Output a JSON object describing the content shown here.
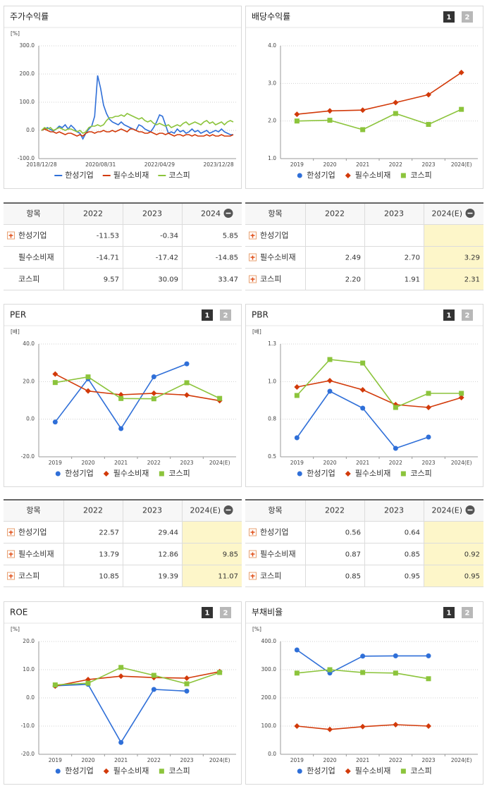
{
  "chart_data": [
    {
      "type": "line",
      "title": "주가수익률",
      "unit": "[%]",
      "categories": [
        "2018/12/28",
        null,
        null,
        null,
        null,
        null,
        null,
        null,
        null,
        null,
        null,
        null,
        null,
        null,
        null,
        null,
        null,
        null,
        null,
        null,
        "2020/08/31",
        null,
        null,
        null,
        null,
        null,
        null,
        null,
        null,
        null,
        null,
        null,
        null,
        null,
        null,
        null,
        null,
        null,
        null,
        null,
        "2022/04/29",
        null,
        null,
        null,
        null,
        null,
        null,
        null,
        null,
        null,
        null,
        null,
        null,
        null,
        null,
        null,
        null,
        null,
        null,
        null,
        "2023/12/28",
        null,
        null,
        null,
        null,
        null
      ],
      "ylim": [
        -100,
        300
      ],
      "yticks": [
        {
          "value": -100,
          "label": "-100.0"
        },
        {
          "value": 0,
          "label": "0.0"
        },
        {
          "value": 100,
          "label": "100.0"
        },
        {
          "value": 200,
          "label": "200.0"
        },
        {
          "value": 300,
          "label": "300.0"
        }
      ],
      "grid": true,
      "series": [
        {
          "name": "한성기업",
          "color": "#2f6fd8",
          "values": [
            0,
            5,
            10,
            3,
            -2,
            5,
            15,
            10,
            20,
            5,
            18,
            8,
            -5,
            -10,
            -30,
            -10,
            5,
            15,
            50,
            195,
            150,
            90,
            60,
            40,
            30,
            25,
            20,
            30,
            20,
            15,
            10,
            5,
            0,
            20,
            15,
            5,
            0,
            -5,
            10,
            30,
            55,
            50,
            20,
            -10,
            -5,
            -10,
            5,
            -5,
            0,
            -10,
            -5,
            5,
            -5,
            0,
            -10,
            -5,
            0,
            -10,
            -5,
            0,
            -5,
            5,
            -5,
            -10,
            -15,
            -15
          ]
        },
        {
          "name": "필수소비재",
          "color": "#d23a0a",
          "values": [
            0,
            5,
            0,
            -5,
            -5,
            -10,
            -5,
            -10,
            -15,
            -10,
            -10,
            -15,
            -20,
            -15,
            -20,
            -10,
            -5,
            -5,
            -10,
            -5,
            -5,
            0,
            -5,
            -5,
            0,
            -5,
            0,
            5,
            0,
            -5,
            5,
            5,
            0,
            -5,
            -5,
            -10,
            -10,
            -5,
            -10,
            -15,
            -10,
            -10,
            -15,
            -10,
            -15,
            -20,
            -15,
            -15,
            -20,
            -15,
            -15,
            -20,
            -15,
            -20,
            -20,
            -20,
            -15,
            -20,
            -15,
            -20,
            -20,
            -15,
            -20,
            -20,
            -20,
            -15
          ]
        },
        {
          "name": "코스피",
          "color": "#8cc43c",
          "values": [
            0,
            10,
            5,
            10,
            0,
            5,
            10,
            5,
            0,
            5,
            5,
            0,
            -5,
            0,
            -10,
            -5,
            10,
            15,
            15,
            20,
            15,
            20,
            35,
            45,
            45,
            50,
            50,
            55,
            50,
            60,
            55,
            50,
            45,
            40,
            45,
            35,
            30,
            35,
            25,
            20,
            25,
            20,
            15,
            20,
            10,
            15,
            20,
            15,
            25,
            30,
            20,
            25,
            30,
            25,
            20,
            30,
            35,
            25,
            30,
            20,
            25,
            30,
            20,
            30,
            35,
            30
          ]
        }
      ]
    },
    {
      "type": "pointline",
      "title": "배당수익률",
      "pages": [
        "1",
        "2"
      ],
      "categories": [
        "2019",
        "2020",
        "2021",
        "2022",
        "2023",
        "2024(E)"
      ],
      "ylim": [
        1,
        4
      ],
      "yticks": [
        {
          "value": 1,
          "label": "1.0"
        },
        {
          "value": 2,
          "label": "2.0"
        },
        {
          "value": 3,
          "label": "3.0"
        },
        {
          "value": 4,
          "label": "4.0"
        }
      ],
      "grid": true,
      "series": [
        {
          "name": "한성기업",
          "color": "#2f6fd8",
          "marker": "circle",
          "values": [
            null,
            null,
            null,
            null,
            null,
            null
          ]
        },
        {
          "name": "필수소비재",
          "color": "#d23a0a",
          "marker": "diamond",
          "values": [
            2.18,
            2.27,
            2.29,
            2.49,
            2.7,
            3.29
          ]
        },
        {
          "name": "코스피",
          "color": "#8cc43c",
          "marker": "square",
          "values": [
            2.0,
            2.02,
            1.77,
            2.2,
            1.91,
            2.31
          ]
        }
      ]
    },
    {
      "type": "pointline",
      "title": "PER",
      "unit": "[배]",
      "pages": [
        "1",
        "2"
      ],
      "categories": [
        "2019",
        "2020",
        "2021",
        "2022",
        "2023",
        "2024(E)"
      ],
      "ylim": [
        -20,
        40
      ],
      "yticks": [
        {
          "value": -20,
          "label": "-20.0"
        },
        {
          "value": 0,
          "label": "0.0"
        },
        {
          "value": 20,
          "label": "20.0"
        },
        {
          "value": 40,
          "label": "40.0"
        }
      ],
      "grid": true,
      "series": [
        {
          "name": "한성기업",
          "color": "#2f6fd8",
          "marker": "circle",
          "values": [
            -1.5,
            21.5,
            -5,
            22.57,
            29.44,
            null
          ]
        },
        {
          "name": "필수소비재",
          "color": "#d23a0a",
          "marker": "diamond",
          "values": [
            24,
            15,
            13,
            13.79,
            12.86,
            9.85
          ]
        },
        {
          "name": "코스피",
          "color": "#8cc43c",
          "marker": "square",
          "values": [
            19.5,
            22.5,
            11,
            10.85,
            19.39,
            11.07
          ]
        }
      ]
    },
    {
      "type": "pointline",
      "title": "PBR",
      "unit": "[배]",
      "pages": [
        "1",
        "2"
      ],
      "categories": [
        "2019",
        "2020",
        "2021",
        "2022",
        "2023",
        "2024(E)"
      ],
      "ylim": [
        0.5,
        1.3
      ],
      "yticks": [
        0.5,
        {
          "value": 0.7667,
          "label": "0.8"
        },
        {
          "value": 1.0333,
          "label": "1.0"
        },
        1.3
      ],
      "grid": true,
      "series": [
        {
          "name": "한성기업",
          "color": "#2f6fd8",
          "marker": "circle",
          "values": [
            0.635,
            0.965,
            0.845,
            0.56,
            0.64,
            null
          ]
        },
        {
          "name": "필수소비재",
          "color": "#d23a0a",
          "marker": "diamond",
          "values": [
            0.995,
            1.04,
            0.975,
            0.87,
            0.85,
            0.92
          ]
        },
        {
          "name": "코스피",
          "color": "#8cc43c",
          "marker": "square",
          "values": [
            0.935,
            1.19,
            1.165,
            0.85,
            0.95,
            0.95
          ]
        }
      ]
    },
    {
      "type": "pointline",
      "title": "ROE",
      "unit": "[%]",
      "pages": [
        "1",
        "2"
      ],
      "categories": [
        "2019",
        "2020",
        "2021",
        "2022",
        "2023",
        "2024(E)"
      ],
      "ylim": [
        -20,
        20
      ],
      "yticks": [
        {
          "value": -20,
          "label": "-20.0"
        },
        {
          "value": -10,
          "label": "-10.0"
        },
        {
          "value": 0,
          "label": "0.0"
        },
        {
          "value": 10,
          "label": "10.0"
        },
        {
          "value": 20,
          "label": "20.0"
        }
      ],
      "grid": true,
      "series": [
        {
          "name": "한성기업",
          "color": "#2f6fd8",
          "marker": "circle",
          "values": [
            4.3,
            4.8,
            -15.8,
            3,
            2.4,
            null
          ]
        },
        {
          "name": "필수소비재",
          "color": "#d23a0a",
          "marker": "diamond",
          "values": [
            4.2,
            6.5,
            7.7,
            7.2,
            7,
            9.3
          ]
        },
        {
          "name": "코스피",
          "color": "#8cc43c",
          "marker": "square",
          "values": [
            4.6,
            5.2,
            10.8,
            8,
            5,
            9
          ]
        }
      ]
    },
    {
      "type": "pointline",
      "title": "부채비율",
      "unit": "[%]",
      "pages": [
        "1",
        "2"
      ],
      "categories": [
        "2019",
        "2020",
        "2021",
        "2022",
        "2023",
        "2024(E)"
      ],
      "ylim": [
        0,
        400
      ],
      "yticks": [
        {
          "value": 0,
          "label": "0.0"
        },
        {
          "value": 100,
          "label": "100.0"
        },
        {
          "value": 200,
          "label": "200.0"
        },
        {
          "value": 300,
          "label": "300.0"
        },
        {
          "value": 400,
          "label": "400.0"
        }
      ],
      "grid": true,
      "series": [
        {
          "name": "한성기업",
          "color": "#2f6fd8",
          "marker": "circle",
          "values": [
            370,
            288,
            348,
            349,
            349,
            null
          ]
        },
        {
          "name": "필수소비재",
          "color": "#d23a0a",
          "marker": "diamond",
          "values": [
            100,
            88,
            98,
            105,
            100,
            null
          ]
        },
        {
          "name": "코스피",
          "color": "#8cc43c",
          "marker": "square",
          "values": [
            288,
            300,
            290,
            288,
            268,
            null
          ]
        }
      ]
    }
  ],
  "tables": [
    {
      "header": [
        "항목",
        "2022",
        "2023",
        "2024"
      ],
      "highlight_last": false,
      "rows": [
        {
          "label": "한성기업",
          "expand_icon": true,
          "cells": [
            "-11.53",
            "-0.34",
            "5.85"
          ]
        },
        {
          "label": "필수소비재",
          "expand_icon": false,
          "cells": [
            "-14.71",
            "-17.42",
            "-14.85"
          ]
        },
        {
          "label": "코스피",
          "expand_icon": false,
          "cells": [
            "9.57",
            "30.09",
            "33.47"
          ]
        }
      ]
    },
    {
      "header": [
        "항목",
        "2022",
        "2023",
        "2024(E)"
      ],
      "highlight_last": true,
      "rows": [
        {
          "label": "한성기업",
          "expand_icon": true,
          "cells": [
            null,
            null,
            null
          ]
        },
        {
          "label": "필수소비재",
          "expand_icon": true,
          "cells": [
            "2.49",
            "2.70",
            "3.29"
          ]
        },
        {
          "label": "코스피",
          "expand_icon": true,
          "cells": [
            "2.20",
            "1.91",
            "2.31"
          ]
        }
      ]
    },
    {
      "header": [
        "항목",
        "2022",
        "2023",
        "2024(E)"
      ],
      "highlight_last": true,
      "rows": [
        {
          "label": "한성기업",
          "expand_icon": true,
          "cells": [
            "22.57",
            "29.44",
            null
          ]
        },
        {
          "label": "필수소비재",
          "expand_icon": true,
          "cells": [
            "13.79",
            "12.86",
            "9.85"
          ]
        },
        {
          "label": "코스피",
          "expand_icon": true,
          "cells": [
            "10.85",
            "19.39",
            "11.07"
          ]
        }
      ]
    },
    {
      "header": [
        "항목",
        "2022",
        "2023",
        "2024(E)"
      ],
      "highlight_last": true,
      "rows": [
        {
          "label": "한성기업",
          "expand_icon": true,
          "cells": [
            "0.56",
            "0.64",
            null
          ]
        },
        {
          "label": "필수소비재",
          "expand_icon": true,
          "cells": [
            "0.87",
            "0.85",
            "0.92"
          ]
        },
        {
          "label": "코스피",
          "expand_icon": true,
          "cells": [
            "0.85",
            "0.95",
            "0.95"
          ]
        }
      ]
    }
  ]
}
